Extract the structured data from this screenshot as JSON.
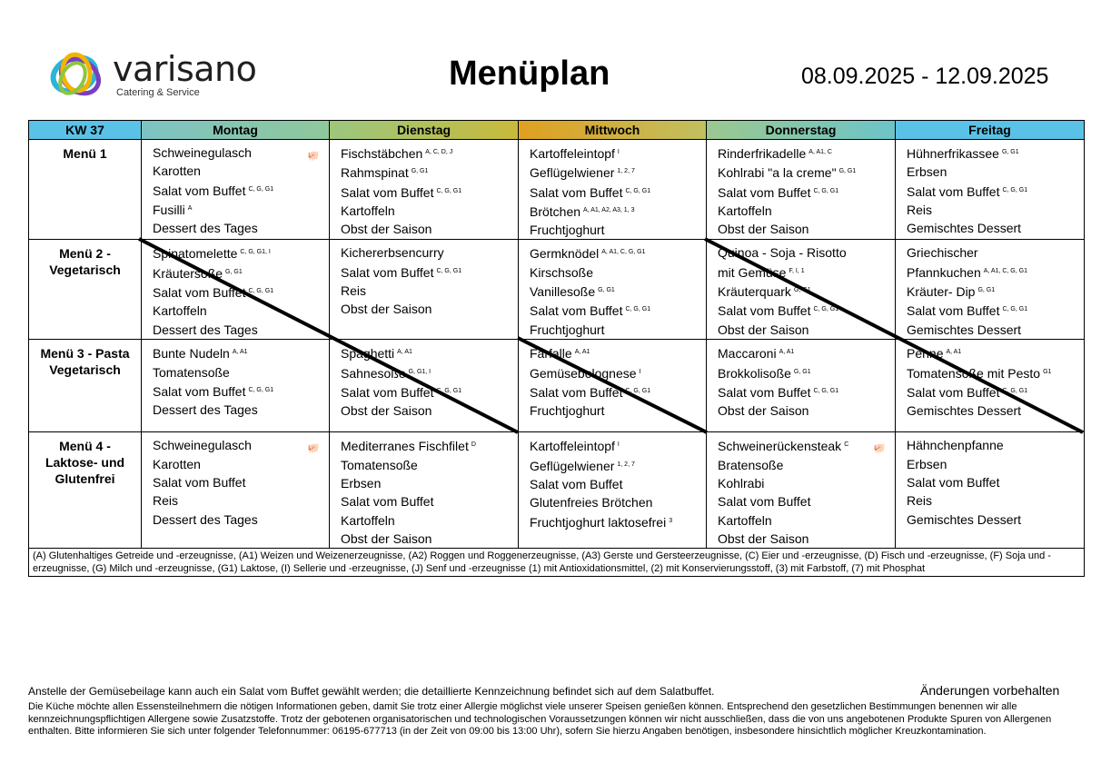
{
  "header": {
    "logo_word": "varisano",
    "logo_sub": "Catering & Service",
    "title": "Menüplan",
    "dates": "08.09.2025 - 12.09.2025"
  },
  "table": {
    "kw": "KW 37",
    "days": [
      "Montag",
      "Dienstag",
      "Mittwoch",
      "Donnerstag",
      "Freitag"
    ],
    "rows": [
      {
        "label": "Menü 1",
        "cells": [
          {
            "pig": true,
            "items": [
              [
                "Schweinegulasch",
                ""
              ],
              [
                "Karotten",
                ""
              ],
              [
                "Salat vom Buffet",
                "C, G, G1"
              ],
              [
                "Fusilli",
                "A"
              ],
              [
                "Dessert des Tages",
                ""
              ]
            ]
          },
          {
            "items": [
              [
                "Fischstäbchen",
                "A, C, D, J"
              ],
              [
                "Rahmspinat",
                "G, G1"
              ],
              [
                "Salat vom Buffet",
                "C, G, G1"
              ],
              [
                "Kartoffeln",
                ""
              ],
              [
                "Obst der Saison",
                ""
              ]
            ]
          },
          {
            "items": [
              [
                "Kartoffeleintopf",
                "I"
              ],
              [
                "Geflügelwiener",
                "1, 2, 7"
              ],
              [
                "Salat vom Buffet",
                "C, G, G1"
              ],
              [
                "Brötchen",
                "A, A1, A2, A3, 1, 3"
              ],
              [
                "Fruchtjoghurt",
                ""
              ]
            ]
          },
          {
            "items": [
              [
                "Rinderfrikadelle",
                "A, A1, C"
              ],
              [
                "Kohlrabi \"a la creme\"",
                "G, G1"
              ],
              [
                "Salat vom Buffet",
                "C, G, G1"
              ],
              [
                "Kartoffeln",
                ""
              ],
              [
                "Obst der Saison",
                ""
              ]
            ]
          },
          {
            "items": [
              [
                "Hühnerfrikassee",
                "G, G1"
              ],
              [
                "Erbsen",
                ""
              ],
              [
                "Salat vom Buffet",
                "C, G, G1"
              ],
              [
                "Reis",
                ""
              ],
              [
                "Gemischtes Dessert",
                ""
              ]
            ]
          }
        ]
      },
      {
        "label": "Menü 2 - Vegetarisch",
        "cells": [
          {
            "items": [
              [
                "Spinatomelette",
                "C, G, G1, I"
              ],
              [
                "Kräutersoße",
                "G, G1"
              ],
              [
                "Salat vom Buffet",
                "C, G, G1"
              ],
              [
                "Kartoffeln",
                ""
              ],
              [
                "Dessert des Tages",
                ""
              ]
            ]
          },
          {
            "items": [
              [
                "Kichererbsencurry",
                ""
              ],
              [
                "Salat vom Buffet",
                "C, G, G1"
              ],
              [
                "Reis",
                ""
              ],
              [
                "Obst der Saison",
                ""
              ]
            ]
          },
          {
            "items": [
              [
                "Germknödel",
                "A, A1, C, G, G1"
              ],
              [
                "Kirschsoße",
                ""
              ],
              [
                "Vanillesoße",
                "G, G1"
              ],
              [
                "Salat vom Buffet",
                "C, G, G1"
              ],
              [
                "Fruchtjoghurt",
                ""
              ]
            ]
          },
          {
            "items": [
              [
                "Quinoa - Soja - Risotto",
                ""
              ],
              [
                "mit Gemüse",
                "F, I, 1"
              ],
              [
                "Kräuterquark",
                "G, G1"
              ],
              [
                "Salat vom Buffet",
                "C, G, G1"
              ],
              [
                "Obst der Saison",
                ""
              ]
            ]
          },
          {
            "items": [
              [
                "Griechischer",
                ""
              ],
              [
                "Pfannkuchen",
                "A, A1, C, G, G1"
              ],
              [
                "Kräuter- Dip",
                "G, G1"
              ],
              [
                "Salat vom Buffet",
                "C, G, G1"
              ],
              [
                "Gemischtes Dessert",
                ""
              ]
            ]
          }
        ]
      },
      {
        "label": "Menü 3 - Pasta Vegetarisch",
        "cells": [
          {
            "items": [
              [
                "Bunte Nudeln",
                "A, A1"
              ],
              [
                "Tomatensoße",
                ""
              ],
              [
                "Salat vom Buffet",
                "C, G, G1"
              ],
              [
                "Dessert des Tages",
                ""
              ]
            ]
          },
          {
            "items": [
              [
                "Spaghetti",
                "A, A1"
              ],
              [
                "Sahnesoße",
                "G, G1, I"
              ],
              [
                "Salat vom Buffet",
                "C, G, G1"
              ],
              [
                "Obst der Saison",
                ""
              ]
            ]
          },
          {
            "items": [
              [
                "Farfalle",
                "A, A1"
              ],
              [
                "Gemüsebolognese",
                "I"
              ],
              [
                "Salat vom Buffet",
                "C, G, G1"
              ],
              [
                "Fruchtjoghurt",
                ""
              ]
            ]
          },
          {
            "items": [
              [
                "Maccaroni",
                "A, A1"
              ],
              [
                "Brokkolisoße",
                "G, G1"
              ],
              [
                "Salat vom Buffet",
                "C, G, G1"
              ],
              [
                "Obst der Saison",
                ""
              ]
            ]
          },
          {
            "items": [
              [
                "Penne",
                "A, A1"
              ],
              [
                "Tomatensoße mit Pesto",
                "G1"
              ],
              [
                "Salat vom Buffet",
                "C, G, G1"
              ],
              [
                "Gemischtes Dessert",
                ""
              ]
            ]
          }
        ]
      },
      {
        "label": "Menü 4 - Laktose- und Glutenfrei",
        "cells": [
          {
            "pig": true,
            "items": [
              [
                "Schweinegulasch",
                ""
              ],
              [
                "Karotten",
                ""
              ],
              [
                "Salat vom Buffet",
                ""
              ],
              [
                "Reis",
                ""
              ],
              [
                "Dessert des Tages",
                ""
              ]
            ]
          },
          {
            "items": [
              [
                "Mediterranes Fischfilet",
                "D"
              ],
              [
                "Tomatensoße",
                ""
              ],
              [
                "Erbsen",
                ""
              ],
              [
                "Salat vom Buffet",
                ""
              ],
              [
                "Kartoffeln",
                ""
              ],
              [
                "Obst der Saison",
                ""
              ]
            ]
          },
          {
            "items": [
              [
                "Kartoffeleintopf",
                "I"
              ],
              [
                "Geflügelwiener",
                "1, 2, 7"
              ],
              [
                "Salat vom Buffet",
                ""
              ],
              [
                "Glutenfreies Brötchen",
                ""
              ],
              [
                "Fruchtjoghurt laktosefrei",
                "3"
              ]
            ]
          },
          {
            "pig": true,
            "items": [
              [
                "Schweinerückensteak",
                "C"
              ],
              [
                "Bratensoße",
                ""
              ],
              [
                "Kohlrabi",
                ""
              ],
              [
                "Salat vom Buffet",
                ""
              ],
              [
                "Kartoffeln",
                ""
              ],
              [
                "Obst der Saison",
                ""
              ]
            ]
          },
          {
            "items": [
              [
                "Hähnchenpfanne",
                ""
              ],
              [
                "Erbsen",
                ""
              ],
              [
                "Salat vom Buffet",
                ""
              ],
              [
                "Reis",
                ""
              ],
              [
                "Gemischtes Dessert",
                ""
              ]
            ]
          }
        ]
      }
    ],
    "legend": "(A) Glutenhaltiges Getreide und -erzeugnisse, (A1) Weizen und Weizenerzeugnisse, (A2) Roggen und Roggenerzeugnisse, (A3) Gerste und Gersteerzeugnisse, (C) Eier und -erzeugnisse, (D) Fisch und -erzeugnisse, (F) Soja und -erzeugnisse, (G) Milch und -erzeugnisse, (G1) Laktose, (I) Sellerie und -erzeugnisse, (J) Senf und -erzeugnisse (1) mit Antioxidationsmittel, (2) mit Konservierungsstoff, (3) mit Farbstoff, (7) mit Phosphat"
  },
  "footer": {
    "note": "Anstelle der Gemüsebeilage kann auch ein Salat vom Buffet gewählt werden; die detaillierte Kennzeichnung befindet sich auf dem Salatbuffet.",
    "changes": "Änderungen vorbehalten",
    "disclaimer": "Die Küche möchte allen Essensteilnehmern die nötigen Informationen geben, damit Sie trotz einer Allergie möglichst viele unserer Speisen genießen können. Entsprechend den gesetzlichen Bestimmungen benennen wir alle kennzeichnungspflichtigen Allergene sowie Zusatzstoffe. Trotz der gebotenen organisatorischen und technologischen Voraussetzungen können wir nicht ausschließen, dass die von uns angebotenen Produkte Spuren von Allergenen enthalten. Bitte informieren Sie sich unter folgender Telefonnummer: 06195-677713 (in der Zeit von 09:00 bis 13:00 Uhr), sofern Sie hierzu Angaben benötigen, insbesondere hinsichtlich möglicher Kreuzkontamination."
  }
}
